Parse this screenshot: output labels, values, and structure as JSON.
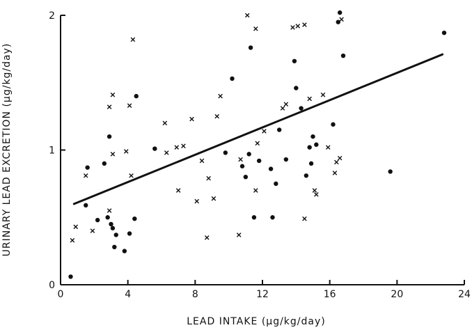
{
  "chart_data": {
    "type": "scatter",
    "title": "",
    "xlabel": "LEAD INTAKE (µg/kg/day)",
    "ylabel": "URINARY LEAD EXCRETION (µg/kg/day)",
    "xlim": [
      0,
      24
    ],
    "ylim": [
      0,
      2
    ],
    "xticks": [
      "0",
      "4",
      "8",
      "12",
      "16",
      "20",
      "24"
    ],
    "yticks": [
      "0",
      "1",
      "2"
    ],
    "grid": false,
    "legend": "none",
    "series": [
      {
        "marker": "dot",
        "points": [
          [
            0.6,
            0.06
          ],
          [
            1.6,
            0.87
          ],
          [
            1.5,
            0.59
          ],
          [
            2.2,
            0.48
          ],
          [
            2.6,
            0.9
          ],
          [
            2.9,
            1.1
          ],
          [
            2.8,
            0.5
          ],
          [
            3.0,
            0.45
          ],
          [
            3.1,
            0.42
          ],
          [
            3.2,
            0.28
          ],
          [
            3.3,
            0.37
          ],
          [
            3.8,
            0.25
          ],
          [
            4.1,
            0.38
          ],
          [
            4.4,
            0.49
          ],
          [
            4.5,
            1.4
          ],
          [
            5.6,
            1.01
          ],
          [
            9.8,
            0.98
          ],
          [
            10.2,
            1.53
          ],
          [
            10.8,
            0.88
          ],
          [
            11.0,
            0.8
          ],
          [
            11.2,
            0.97
          ],
          [
            11.3,
            1.76
          ],
          [
            11.5,
            0.5
          ],
          [
            11.8,
            0.92
          ],
          [
            12.5,
            0.86
          ],
          [
            12.8,
            0.75
          ],
          [
            13.0,
            1.15
          ],
          [
            13.4,
            0.93
          ],
          [
            13.9,
            1.66
          ],
          [
            14.0,
            1.46
          ],
          [
            14.3,
            1.31
          ],
          [
            14.6,
            0.81
          ],
          [
            14.8,
            1.02
          ],
          [
            14.9,
            0.9
          ],
          [
            15.0,
            1.1
          ],
          [
            15.2,
            1.04
          ],
          [
            16.2,
            1.19
          ],
          [
            16.6,
            2.02
          ],
          [
            16.5,
            1.95
          ],
          [
            16.8,
            1.7
          ],
          [
            19.6,
            0.84
          ],
          [
            22.8,
            1.87
          ],
          [
            12.6,
            0.5
          ]
        ]
      },
      {
        "marker": "x",
        "points": [
          [
            0.7,
            0.33
          ],
          [
            0.9,
            0.43
          ],
          [
            1.5,
            0.81
          ],
          [
            1.9,
            0.4
          ],
          [
            2.9,
            0.55
          ],
          [
            2.9,
            1.32
          ],
          [
            3.1,
            1.41
          ],
          [
            3.1,
            0.97
          ],
          [
            3.9,
            0.99
          ],
          [
            4.1,
            1.33
          ],
          [
            4.2,
            0.81
          ],
          [
            4.3,
            1.82
          ],
          [
            6.2,
            1.2
          ],
          [
            6.3,
            0.98
          ],
          [
            6.9,
            1.02
          ],
          [
            7.0,
            0.7
          ],
          [
            7.3,
            1.03
          ],
          [
            7.8,
            1.23
          ],
          [
            8.1,
            0.62
          ],
          [
            8.4,
            0.92
          ],
          [
            8.7,
            0.35
          ],
          [
            8.8,
            0.79
          ],
          [
            9.1,
            0.64
          ],
          [
            9.3,
            1.25
          ],
          [
            9.5,
            1.4
          ],
          [
            10.6,
            0.37
          ],
          [
            10.7,
            0.93
          ],
          [
            11.1,
            2.0
          ],
          [
            11.6,
            1.9
          ],
          [
            11.6,
            0.7
          ],
          [
            11.7,
            1.05
          ],
          [
            12.1,
            1.14
          ],
          [
            13.2,
            1.31
          ],
          [
            13.4,
            1.34
          ],
          [
            13.8,
            1.91
          ],
          [
            14.1,
            1.92
          ],
          [
            14.5,
            1.93
          ],
          [
            14.5,
            0.49
          ],
          [
            14.8,
            1.38
          ],
          [
            15.1,
            0.7
          ],
          [
            15.2,
            0.67
          ],
          [
            15.6,
            1.41
          ],
          [
            15.9,
            1.02
          ],
          [
            16.3,
            0.83
          ],
          [
            16.4,
            0.91
          ],
          [
            16.6,
            0.94
          ],
          [
            16.7,
            1.97
          ]
        ]
      }
    ],
    "regression_line": {
      "x": [
        0.8,
        22.7
      ],
      "y": [
        0.6,
        1.71
      ]
    }
  }
}
